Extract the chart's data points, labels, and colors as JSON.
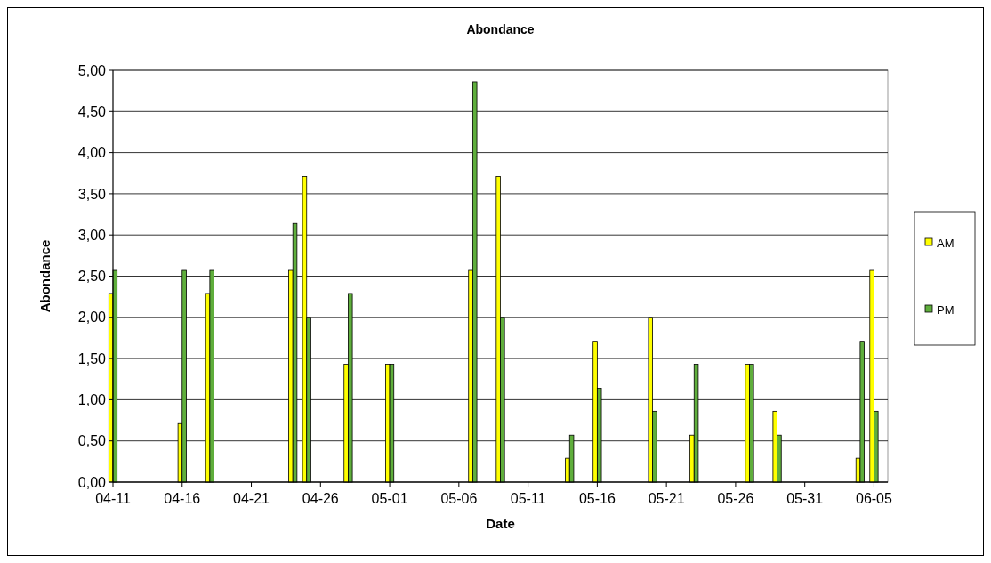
{
  "chart_data": {
    "type": "bar",
    "title": "Abondance",
    "xlabel": "Date",
    "ylabel": "Abondance",
    "x": [
      "--04-11",
      "--04-16",
      "--04-18",
      "--04-24",
      "--04-25",
      "--04-28",
      "--05-01",
      "--05-07",
      "--05-09",
      "--05-14",
      "--05-16",
      "--05-20",
      "--05-23",
      "--05-27",
      "--05-29",
      "--06-04",
      "--06-05"
    ],
    "series": [
      {
        "name": "AM",
        "color": "#ffff00",
        "values": [
          2.29,
          0.71,
          2.29,
          2.57,
          3.71,
          1.43,
          1.43,
          2.57,
          3.71,
          0.29,
          1.71,
          2.0,
          0.57,
          1.43,
          0.86,
          0.29,
          2.57
        ]
      },
      {
        "name": "PM",
        "color": "#5fae3c",
        "values": [
          2.57,
          2.57,
          2.57,
          3.14,
          2.0,
          2.29,
          1.43,
          4.86,
          2.0,
          0.57,
          1.14,
          0.86,
          1.43,
          1.43,
          0.57,
          1.71,
          0.86
        ]
      }
    ],
    "xlim": [
      "--04-11",
      "--06-06"
    ],
    "xticks": [
      {
        "value": "--04-11",
        "label": "04-11"
      },
      {
        "value": "--04-16",
        "label": "04-16"
      },
      {
        "value": "--04-21",
        "label": "04-21"
      },
      {
        "value": "--04-26",
        "label": "04-26"
      },
      {
        "value": "--05-01",
        "label": "05-01"
      },
      {
        "value": "--05-06",
        "label": "05-06"
      },
      {
        "value": "--05-11",
        "label": "05-11"
      },
      {
        "value": "--05-16",
        "label": "05-16"
      },
      {
        "value": "--05-21",
        "label": "05-21"
      },
      {
        "value": "--05-26",
        "label": "05-26"
      },
      {
        "value": "--05-31",
        "label": "05-31"
      },
      {
        "value": "--06-05",
        "label": "06-05"
      }
    ],
    "ylim": [
      0,
      5
    ],
    "yticks": [
      {
        "value": 0,
        "label": "0,00"
      },
      {
        "value": 0.5,
        "label": "0,50"
      },
      {
        "value": 1,
        "label": "1,00"
      },
      {
        "value": 1.5,
        "label": "1,50"
      },
      {
        "value": 2,
        "label": "2,00"
      },
      {
        "value": 2.5,
        "label": "2,50"
      },
      {
        "value": 3,
        "label": "3,00"
      },
      {
        "value": 3.5,
        "label": "3,50"
      },
      {
        "value": 4,
        "label": "4,00"
      },
      {
        "value": 4.5,
        "label": "4,50"
      },
      {
        "value": 5,
        "label": "5,00"
      }
    ],
    "grid": "y",
    "legend": "right"
  }
}
